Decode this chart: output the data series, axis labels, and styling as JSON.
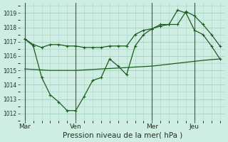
{
  "background_color": "#ceeee4",
  "grid_color": "#aad4ca",
  "line_color": "#1a5e1a",
  "xlabel": "Pression niveau de la mer( hPa )",
  "ylim": [
    1011.5,
    1019.7
  ],
  "yticks": [
    1012,
    1013,
    1014,
    1015,
    1016,
    1017,
    1018,
    1019
  ],
  "xtick_labels": [
    "Mar",
    "Ven",
    "Mer",
    "Jeu"
  ],
  "xtick_positions": [
    0,
    30,
    75,
    100
  ],
  "vline_positions": [
    0,
    30,
    75,
    100
  ],
  "xlim": [
    -3,
    118
  ],
  "s1_x": [
    0,
    5,
    10,
    15,
    20,
    25,
    30,
    35,
    40,
    45,
    50,
    55,
    60,
    65,
    70,
    75,
    80,
    85,
    90,
    95,
    100,
    105,
    110,
    115
  ],
  "s1_y": [
    1017.2,
    1016.8,
    1016.6,
    1016.8,
    1016.8,
    1016.7,
    1016.7,
    1016.6,
    1016.6,
    1016.6,
    1016.7,
    1016.7,
    1016.7,
    1017.5,
    1017.8,
    1017.9,
    1018.1,
    1018.2,
    1018.2,
    1019.1,
    1018.8,
    1018.2,
    1017.5,
    1016.7
  ],
  "s2_x": [
    0,
    5,
    10,
    15,
    20,
    25,
    30,
    35,
    40,
    45,
    50,
    55,
    60,
    65,
    70,
    75,
    80,
    85,
    90,
    95,
    100,
    105,
    110,
    115
  ],
  "s2_y": [
    1017.2,
    1016.7,
    1014.5,
    1013.3,
    1012.8,
    1012.2,
    1012.2,
    1013.2,
    1014.3,
    1014.5,
    1015.8,
    1015.3,
    1014.7,
    1016.7,
    1017.5,
    1017.9,
    1018.2,
    1018.2,
    1019.2,
    1019.0,
    1017.8,
    1017.5,
    1016.7,
    1015.8
  ],
  "s3_x": [
    0,
    15,
    30,
    45,
    60,
    75,
    90,
    105,
    115
  ],
  "s3_y": [
    1015.1,
    1015.0,
    1015.0,
    1015.1,
    1015.2,
    1015.3,
    1015.5,
    1015.7,
    1015.8
  ]
}
